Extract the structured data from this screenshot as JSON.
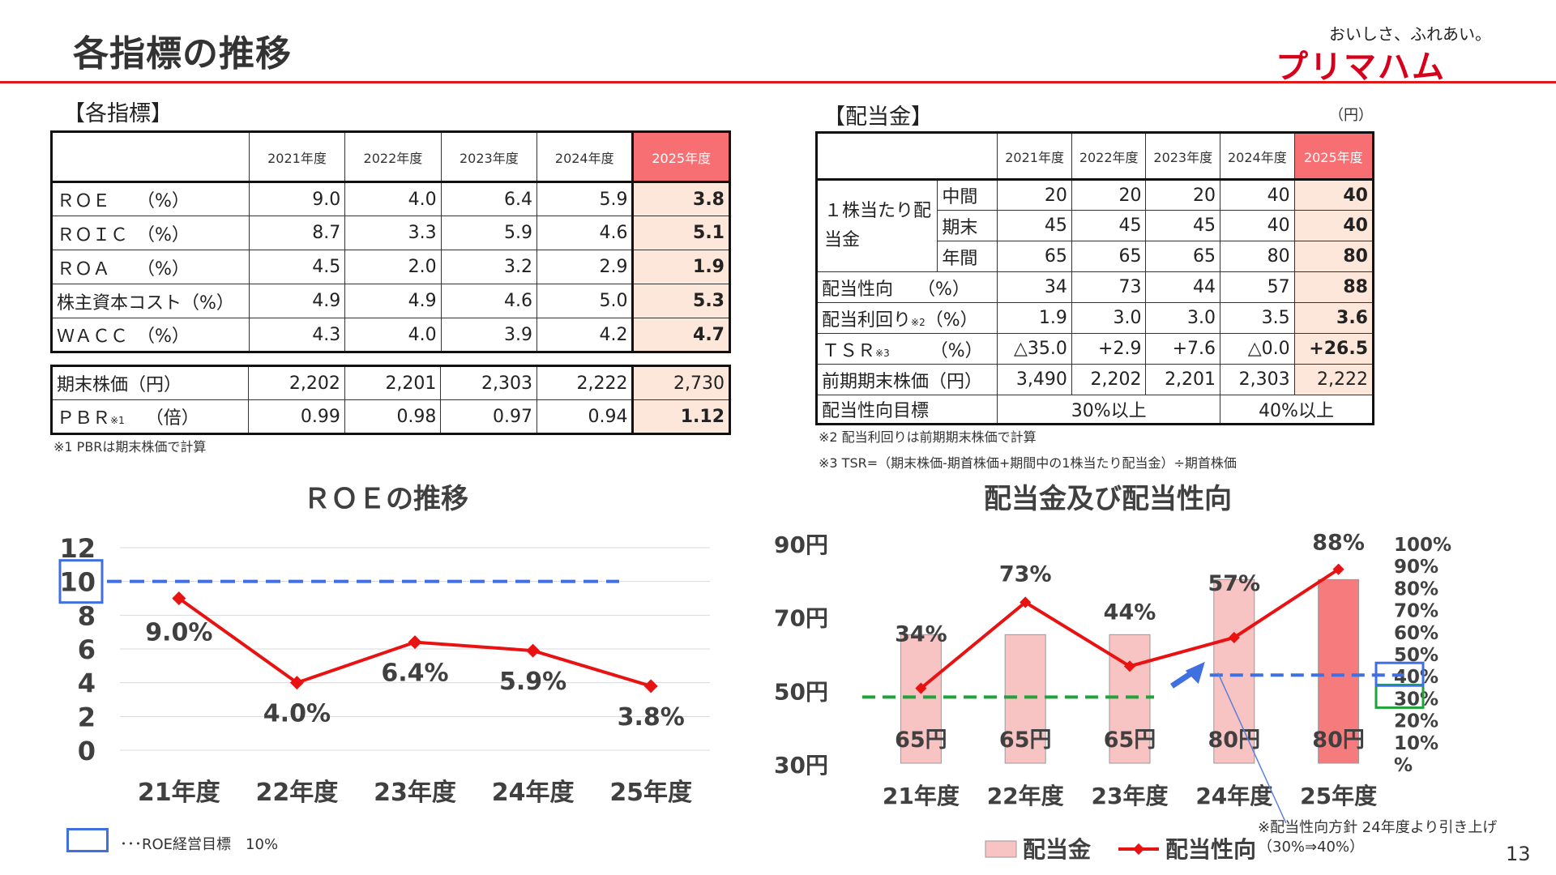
{
  "page": {
    "title": "各指標の推移",
    "page_number": "13"
  },
  "brand": {
    "tagline": "おいしさ、ふれあい。",
    "name": "プリマハム",
    "color": "#d7001a"
  },
  "indicators": {
    "section_title": "【各指標】",
    "headers": [
      "2021年度",
      "2022年度",
      "2023年度",
      "2024年度",
      "2025年度"
    ],
    "rows": [
      {
        "label": "ＲＯＥ　　（%）",
        "values": [
          "9.0",
          "4.0",
          "6.4",
          "5.9",
          "3.8"
        ]
      },
      {
        "label": "ＲＯＩＣ　（%）",
        "values": [
          "8.7",
          "3.3",
          "5.9",
          "4.6",
          "5.1"
        ]
      },
      {
        "label": "ＲＯＡ　　（%）",
        "values": [
          "4.5",
          "2.0",
          "3.2",
          "2.9",
          "1.9"
        ]
      },
      {
        "label": "株主資本コスト（%）",
        "values": [
          "4.9",
          "4.9",
          "4.6",
          "5.0",
          "5.3"
        ]
      },
      {
        "label": "ＷＡＣＣ　（%）",
        "values": [
          "4.3",
          "4.0",
          "3.9",
          "4.2",
          "4.7"
        ]
      }
    ],
    "rows2": [
      {
        "label": "期末株価（円）",
        "values": [
          "2,202",
          "2,201",
          "2,303",
          "2,222",
          "2,730"
        ]
      },
      {
        "label": "ＰＢＲ",
        "label_note": "※1",
        "label_unit": "（倍）",
        "values": [
          "0.99",
          "0.98",
          "0.97",
          "0.94",
          "1.12"
        ]
      }
    ],
    "note1": "※1 PBRは期末株価で計算"
  },
  "dividends": {
    "section_title": "【配当金】",
    "unit": "（円）",
    "headers": [
      "2021年度",
      "2022年度",
      "2023年度",
      "2024年度",
      "2025年度"
    ],
    "per_share_label": "１株当たり配当金",
    "per_share_rows": [
      {
        "label": "中間",
        "values": [
          "20",
          "20",
          "20",
          "40",
          "40"
        ]
      },
      {
        "label": "期末",
        "values": [
          "45",
          "45",
          "45",
          "40",
          "40"
        ]
      },
      {
        "label": "年間",
        "values": [
          "65",
          "65",
          "65",
          "80",
          "80"
        ]
      }
    ],
    "rows": [
      {
        "label": "配当性向",
        "note": "",
        "unit": "（%）",
        "values": [
          "34",
          "73",
          "44",
          "57",
          "88"
        ]
      },
      {
        "label": "配当利回り",
        "note": "※2",
        "unit": "（%）",
        "values": [
          "1.9",
          "3.0",
          "3.0",
          "3.5",
          "3.6"
        ]
      },
      {
        "label": "ＴＳＲ",
        "note": "※3",
        "unit": "（%）",
        "values": [
          "△35.0",
          "+2.9",
          "+7.6",
          "△0.0",
          "+26.5"
        ]
      },
      {
        "label": "前期期末株価（円）",
        "note": "",
        "unit": "",
        "values": [
          "3,490",
          "2,202",
          "2,201",
          "2,303",
          "2,222"
        ]
      }
    ],
    "target_row": {
      "label": "配当性向目標",
      "target_a": "30%以上",
      "target_b": "40%以上"
    },
    "note2": "※2 配当利回りは前期期末株価で計算",
    "note3": "※3 TSR=（期末株価-期首株価+期間中の1株当たり配当金）÷期首株価"
  },
  "chart_data": [
    {
      "type": "line",
      "title": "ＲＯＥの推移",
      "categories": [
        "21年度",
        "22年度",
        "23年度",
        "24年度",
        "25年度"
      ],
      "series": [
        {
          "name": "",
          "values": [
            9.0,
            4.0,
            6.4,
            5.9,
            3.8
          ],
          "color": "#e81212"
        }
      ],
      "data_labels": [
        "9.0%",
        "4.0%",
        "6.4%",
        "5.9%",
        "3.8%"
      ],
      "ylim": [
        0,
        12
      ],
      "yticks": [
        "0",
        "2",
        "4",
        "6",
        "8",
        "10",
        "12"
      ],
      "grid": true,
      "target_line": {
        "value": 10,
        "color": "#3f6fe0"
      },
      "legend_note": "･･･ROE経営目標　10%"
    },
    {
      "type": "bar",
      "title": "配当金及び配当性向",
      "categories": [
        "21年度",
        "22年度",
        "23年度",
        "24年度",
        "25年度"
      ],
      "series": [
        {
          "name": "配当金",
          "type": "bar",
          "values": [
            65,
            65,
            65,
            80,
            80
          ],
          "labels": [
            "65円",
            "65円",
            "65円",
            "80円",
            "80円"
          ],
          "color": "#f8c3c3",
          "highlight_color": "#f57b7d"
        },
        {
          "name": "配当性向",
          "type": "line",
          "values": [
            34,
            73,
            44,
            57,
            88
          ],
          "labels": [
            "34%",
            "73%",
            "44%",
            "57%",
            "88%"
          ],
          "color": "#e81212"
        }
      ],
      "y_left": {
        "range": [
          30,
          90
        ],
        "ticks": [
          "30円",
          "50円",
          "70円",
          "90円"
        ]
      },
      "y_right": {
        "range": [
          0,
          100
        ],
        "ticks": [
          "%",
          "10%",
          "20%",
          "30%",
          "40%",
          "50%",
          "60%",
          "70%",
          "80%",
          "90%",
          "100%"
        ]
      },
      "targets": [
        {
          "value": 30,
          "color": "#1fa33a",
          "from": "21年度",
          "to": "23年度"
        },
        {
          "value": 40,
          "color": "#3f6fe0",
          "from": "24年度",
          "to": "25年度"
        }
      ],
      "policy_note": "※配当性向方針 24年度より引き上げ（30%⇒40%）"
    }
  ],
  "colors": {
    "accent_red": "#e01818",
    "highlight_cell": "#fde6da",
    "highlight_header": "#f76f72",
    "target_blue": "#3f6fe0",
    "target_green": "#1fa33a"
  }
}
